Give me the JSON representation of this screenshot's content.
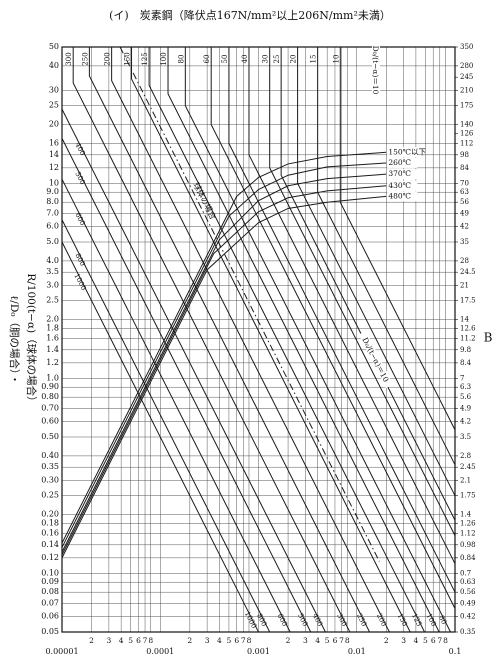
{
  "chart_data": {
    "type": "line",
    "title": "(イ)　炭素鋼（降伏点167N/mm²以上206N/mm²未満）",
    "ylabel": [
      "ℓ/D₀（胴の場合）・",
      "R/100(t−α)（球体の場合）"
    ],
    "y2label": "B",
    "annotations": [
      "D₀/(t−α)＝10",
      "D₀/(t−α)＝10"
    ],
    "log_x": true,
    "log_y": true,
    "grid": true,
    "color": "#1a1a1a",
    "xlim": [
      1e-05,
      0.1
    ],
    "xticks": [
      {
        "value": 1e-05,
        "label": "0.00001"
      },
      {
        "value": 2e-05,
        "label": "2"
      },
      {
        "value": 3e-05,
        "label": "3"
      },
      {
        "value": 4e-05,
        "label": "4"
      },
      {
        "value": 5e-05,
        "label": "5"
      },
      {
        "value": 6e-05,
        "label": "6"
      },
      {
        "value": 7e-05,
        "label": "7"
      },
      {
        "value": 8e-05,
        "label": "8"
      },
      {
        "value": 0.0001,
        "label": "0.0001"
      },
      {
        "value": 0.0002,
        "label": "2"
      },
      {
        "value": 0.0003,
        "label": "3"
      },
      {
        "value": 0.0004,
        "label": "4"
      },
      {
        "value": 0.0005,
        "label": "5"
      },
      {
        "value": 0.0006,
        "label": "6"
      },
      {
        "value": 0.0007,
        "label": "7"
      },
      {
        "value": 0.0008,
        "label": "8"
      },
      0.001,
      {
        "value": 0.002,
        "label": "2"
      },
      {
        "value": 0.003,
        "label": "3"
      },
      {
        "value": 0.004,
        "label": "4"
      },
      {
        "value": 0.005,
        "label": "5"
      },
      {
        "value": 0.006,
        "label": "6"
      },
      {
        "value": 0.007,
        "label": "7"
      },
      {
        "value": 0.008,
        "label": "8"
      },
      0.01,
      {
        "value": 0.02,
        "label": "2"
      },
      {
        "value": 0.03,
        "label": "3"
      },
      {
        "value": 0.04,
        "label": "4"
      },
      {
        "value": 0.05,
        "label": "5"
      },
      {
        "value": 0.06,
        "label": "6"
      },
      {
        "value": 0.07,
        "label": "7"
      },
      {
        "value": 0.08,
        "label": "8"
      },
      0.1
    ],
    "ylim": [
      0.05,
      50
    ],
    "yticks": [
      50,
      40,
      30,
      25,
      20,
      16,
      14,
      12,
      10,
      {
        "value": 9,
        "label": "9.0"
      },
      {
        "value": 8,
        "label": "8.0"
      },
      {
        "value": 7,
        "label": "7.0"
      },
      {
        "value": 6,
        "label": "6.0"
      },
      {
        "value": 5,
        "label": "5.0"
      },
      {
        "value": 4,
        "label": "4.0"
      },
      3.5,
      {
        "value": 3,
        "label": "3.0"
      },
      2.5,
      {
        "value": 2,
        "label": "2.0"
      },
      1.8,
      1.6,
      1.4,
      1.2,
      {
        "value": 1,
        "label": "1.0"
      },
      {
        "value": 0.9,
        "label": "0.90"
      },
      {
        "value": 0.8,
        "label": "0.80"
      },
      {
        "value": 0.7,
        "label": "0.70"
      },
      {
        "value": 0.6,
        "label": "0.60"
      },
      {
        "value": 0.5,
        "label": "0.50"
      },
      {
        "value": 0.4,
        "label": "0.40"
      },
      0.35,
      {
        "value": 0.3,
        "label": "0.30"
      },
      0.25,
      {
        "value": 0.2,
        "label": "0.20"
      },
      0.18,
      0.16,
      0.14,
      0.12,
      {
        "value": 0.1,
        "label": "0.10"
      },
      0.09,
      0.08,
      0.07,
      0.06,
      0.05
    ],
    "y2lim": [
      0.35,
      350
    ],
    "y2ticks": [
      350,
      280,
      245,
      210,
      175,
      140,
      126,
      112,
      98,
      84,
      70,
      63,
      56,
      49,
      42,
      35,
      28,
      24.5,
      21,
      17.5,
      14,
      12.6,
      11.2,
      9.8,
      8.4,
      7,
      6.3,
      5.6,
      4.9,
      4.2,
      3.5,
      2.8,
      2.45,
      2.1,
      1.75,
      1.4,
      1.26,
      1.12,
      0.98,
      0.84,
      0.7,
      0.63,
      0.56,
      0.49,
      0.42,
      0.35
    ],
    "series": [
      {
        "name": "300",
        "x": [
          1.3e-05,
          1.3e-05,
          0.0085
        ],
        "values": [
          50,
          32.7,
          0.05
        ]
      },
      {
        "name": "250",
        "x": [
          1.9e-05,
          1.9e-05,
          0.0135
        ],
        "values": [
          50,
          35.5,
          0.05
        ]
      },
      {
        "name": "200",
        "x": [
          3.2e-05,
          3.2e-05,
          0.0215
        ],
        "values": [
          50,
          33.6,
          0.05
        ]
      },
      {
        "name": "150",
        "x": [
          5.1e-05,
          5.1e-05,
          0.035
        ],
        "values": [
          50,
          34.3,
          0.05
        ]
      },
      {
        "name": "125",
        "x": [
          7.7e-05,
          7.7e-05,
          0.049
        ],
        "values": [
          50,
          31.8,
          0.05
        ]
      },
      {
        "name": "100",
        "x": [
          0.00012,
          0.00012,
          0.069
        ],
        "values": [
          50,
          28.75,
          0.05
        ]
      },
      {
        "name": "80",
        "x": [
          0.00018,
          0.00018,
          0.09
        ],
        "values": [
          50,
          25,
          0.05
        ]
      },
      {
        "name": "60",
        "x": [
          0.00033,
          0.00033,
          0.1
        ],
        "values": [
          50,
          20,
          0.066
        ]
      },
      {
        "name": "50",
        "x": [
          0.0005,
          0.0005,
          0.1
        ],
        "values": [
          50,
          16,
          0.08
        ]
      },
      {
        "name": "40",
        "x": [
          0.0008,
          0.0008,
          0.1
        ],
        "values": [
          50,
          14,
          0.112
        ]
      },
      {
        "name": "30",
        "x": [
          0.0013,
          0.0013,
          0.1
        ],
        "values": [
          50,
          12,
          0.156
        ]
      },
      {
        "name": "25",
        "x": [
          0.0017,
          0.0017,
          0.1
        ],
        "values": [
          50,
          11,
          0.187
        ]
      },
      {
        "name": "20",
        "x": [
          0.0025,
          0.0025,
          0.1
        ],
        "values": [
          50,
          10,
          0.25
        ]
      },
      {
        "name": "15",
        "x": [
          0.004,
          0.004,
          0.1
        ],
        "values": [
          50,
          9,
          0.36
        ]
      },
      {
        "name": "10",
        "x": [
          0.0068,
          0.0068,
          0.1
        ],
        "values": [
          50,
          8,
          0.544
        ]
      },
      {
        "name": "1000",
        "x": [
          1e-05,
          0.001
        ],
        "values": [
          5,
          0.05
        ]
      },
      {
        "name": "800",
        "x": [
          1e-05,
          0.0013
        ],
        "values": [
          6.5,
          0.05
        ]
      },
      {
        "name": "600",
        "x": [
          1e-05,
          0.0021
        ],
        "values": [
          10.5,
          0.05
        ]
      },
      {
        "name": "500",
        "x": [
          1e-05,
          0.0034
        ],
        "values": [
          17,
          0.05
        ]
      },
      {
        "name": "400",
        "x": [
          1e-05,
          0.0048
        ],
        "values": [
          24,
          0.05
        ]
      },
      {
        "name": "球体の場合",
        "dash": true,
        "x": [
          3.9e-05,
          0.017
        ],
        "values": [
          50,
          0.115
        ]
      },
      {
        "name": "150℃以下",
        "axis": "y2",
        "x": [
          1e-05,
          0.0006,
          0.001,
          0.002,
          0.005,
          0.02
        ],
        "values": [
          1,
          60,
          75,
          88,
          96,
          101
        ]
      },
      {
        "name": "260℃",
        "axis": "y2",
        "x": [
          1e-05,
          0.0005,
          0.001,
          0.002,
          0.005,
          0.02
        ],
        "values": [
          0.95,
          47.5,
          65,
          77,
          85,
          89
        ]
      },
      {
        "name": "370℃",
        "axis": "y2",
        "x": [
          1e-05,
          0.0004,
          0.001,
          0.002,
          0.005,
          0.02
        ],
        "values": [
          0.9,
          36,
          57,
          68,
          74,
          78
        ]
      },
      {
        "name": "430℃",
        "axis": "y2",
        "x": [
          1e-05,
          0.00035,
          0.001,
          0.002,
          0.005,
          0.02
        ],
        "values": [
          0.87,
          30.5,
          50,
          59,
          64,
          68
        ]
      },
      {
        "name": "480℃",
        "axis": "y2",
        "x": [
          1e-05,
          0.0003,
          0.001,
          0.002,
          0.005,
          0.02
        ],
        "values": [
          0.84,
          25.2,
          44,
          52,
          56,
          60
        ]
      }
    ]
  }
}
